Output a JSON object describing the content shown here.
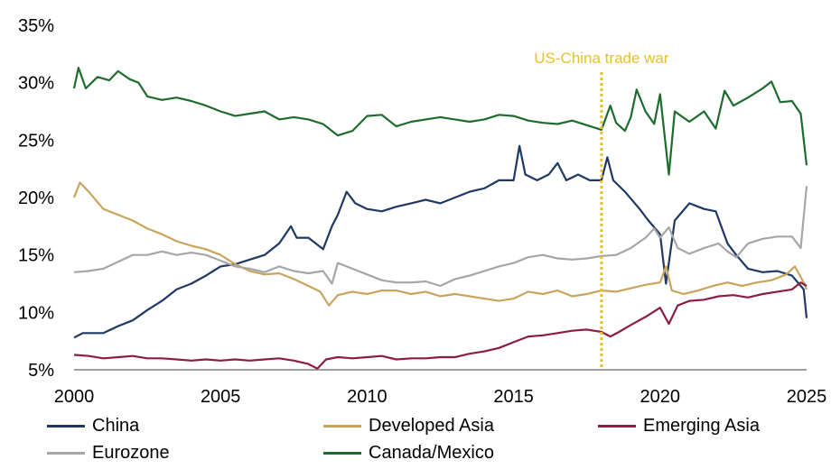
{
  "chart_data": {
    "type": "line",
    "title": "",
    "xlabel": "",
    "ylabel": "",
    "xlim": [
      2000,
      2025
    ],
    "ylim": [
      5,
      35
    ],
    "x_ticks": [
      "2000",
      "2005",
      "2010",
      "2015",
      "2020",
      "2025"
    ],
    "y_ticks": [
      "5%",
      "10%",
      "15%",
      "20%",
      "25%",
      "30%",
      "35%"
    ],
    "grid": false,
    "legend_position": "bottom",
    "annotations": [
      {
        "text": "US-China trade war",
        "x": 2018.0,
        "style": "dotted-vertical-line",
        "color": "#E6C229"
      }
    ],
    "series": [
      {
        "name": "China",
        "color": "#1F3864",
        "points": [
          [
            2000,
            7.8
          ],
          [
            2000.3,
            8.2
          ],
          [
            2001,
            8.2
          ],
          [
            2001.5,
            8.8
          ],
          [
            2002,
            9.3
          ],
          [
            2002.5,
            10.2
          ],
          [
            2003,
            11.0
          ],
          [
            2003.5,
            12.0
          ],
          [
            2004,
            12.5
          ],
          [
            2004.5,
            13.2
          ],
          [
            2005,
            14.0
          ],
          [
            2005.5,
            14.2
          ],
          [
            2006,
            14.6
          ],
          [
            2006.5,
            15.0
          ],
          [
            2007,
            16.0
          ],
          [
            2007.4,
            17.5
          ],
          [
            2007.6,
            16.5
          ],
          [
            2008,
            16.5
          ],
          [
            2008.5,
            15.5
          ],
          [
            2008.8,
            17.5
          ],
          [
            2009,
            18.5
          ],
          [
            2009.3,
            20.5
          ],
          [
            2009.6,
            19.5
          ],
          [
            2010,
            19.0
          ],
          [
            2010.5,
            18.8
          ],
          [
            2011,
            19.2
          ],
          [
            2011.5,
            19.5
          ],
          [
            2012,
            19.8
          ],
          [
            2012.5,
            19.5
          ],
          [
            2013,
            20.0
          ],
          [
            2013.5,
            20.5
          ],
          [
            2014,
            20.8
          ],
          [
            2014.5,
            21.5
          ],
          [
            2015,
            21.5
          ],
          [
            2015.2,
            24.5
          ],
          [
            2015.4,
            22.0
          ],
          [
            2015.8,
            21.5
          ],
          [
            2016.2,
            22.0
          ],
          [
            2016.5,
            23.0
          ],
          [
            2016.8,
            21.5
          ],
          [
            2017.2,
            22.0
          ],
          [
            2017.6,
            21.5
          ],
          [
            2018,
            21.5
          ],
          [
            2018.2,
            23.5
          ],
          [
            2018.4,
            21.5
          ],
          [
            2018.8,
            20.5
          ],
          [
            2019.3,
            19.0
          ],
          [
            2019.6,
            18.0
          ],
          [
            2020,
            16.8
          ],
          [
            2020.2,
            12.5
          ],
          [
            2020.5,
            18.0
          ],
          [
            2021,
            19.5
          ],
          [
            2021.5,
            19.0
          ],
          [
            2021.9,
            18.8
          ],
          [
            2022.3,
            16.0
          ],
          [
            2022.6,
            15.0
          ],
          [
            2023,
            13.8
          ],
          [
            2023.5,
            13.5
          ],
          [
            2024,
            13.6
          ],
          [
            2024.5,
            13.2
          ],
          [
            2024.9,
            12.0
          ],
          [
            2025,
            9.5
          ]
        ]
      },
      {
        "name": "Developed Asia",
        "color": "#C9A45C",
        "points": [
          [
            2000,
            20.0
          ],
          [
            2000.2,
            21.3
          ],
          [
            2000.5,
            20.5
          ],
          [
            2001,
            19.0
          ],
          [
            2001.5,
            18.5
          ],
          [
            2002,
            18.0
          ],
          [
            2002.5,
            17.3
          ],
          [
            2003,
            16.8
          ],
          [
            2003.5,
            16.2
          ],
          [
            2004,
            15.8
          ],
          [
            2004.5,
            15.5
          ],
          [
            2005,
            15.0
          ],
          [
            2005.5,
            14.2
          ],
          [
            2006,
            13.6
          ],
          [
            2006.5,
            13.3
          ],
          [
            2007,
            13.4
          ],
          [
            2007.5,
            12.9
          ],
          [
            2008,
            12.3
          ],
          [
            2008.4,
            11.8
          ],
          [
            2008.7,
            10.6
          ],
          [
            2009,
            11.5
          ],
          [
            2009.5,
            11.8
          ],
          [
            2010,
            11.6
          ],
          [
            2010.5,
            11.9
          ],
          [
            2011,
            11.9
          ],
          [
            2011.5,
            11.6
          ],
          [
            2012,
            11.8
          ],
          [
            2012.5,
            11.4
          ],
          [
            2013,
            11.6
          ],
          [
            2013.5,
            11.4
          ],
          [
            2014,
            11.2
          ],
          [
            2014.5,
            11.0
          ],
          [
            2015,
            11.2
          ],
          [
            2015.5,
            11.8
          ],
          [
            2016,
            11.6
          ],
          [
            2016.5,
            11.9
          ],
          [
            2017,
            11.4
          ],
          [
            2017.5,
            11.6
          ],
          [
            2018,
            11.9
          ],
          [
            2018.5,
            11.8
          ],
          [
            2019,
            12.1
          ],
          [
            2019.5,
            12.4
          ],
          [
            2020,
            12.6
          ],
          [
            2020.2,
            14.0
          ],
          [
            2020.4,
            11.9
          ],
          [
            2020.8,
            11.6
          ],
          [
            2021.3,
            11.9
          ],
          [
            2021.8,
            12.3
          ],
          [
            2022.3,
            12.6
          ],
          [
            2022.8,
            12.3
          ],
          [
            2023.3,
            12.6
          ],
          [
            2023.8,
            12.8
          ],
          [
            2024.3,
            13.3
          ],
          [
            2024.6,
            14.0
          ],
          [
            2024.9,
            12.6
          ],
          [
            2025,
            12.0
          ]
        ]
      },
      {
        "name": "Emerging Asia",
        "color": "#8B1E3F",
        "points": [
          [
            2000,
            6.3
          ],
          [
            2000.5,
            6.2
          ],
          [
            2001,
            6.0
          ],
          [
            2001.5,
            6.1
          ],
          [
            2002,
            6.2
          ],
          [
            2002.5,
            6.0
          ],
          [
            2003,
            6.0
          ],
          [
            2003.5,
            5.9
          ],
          [
            2004,
            5.8
          ],
          [
            2004.5,
            5.9
          ],
          [
            2005,
            5.8
          ],
          [
            2005.5,
            5.9
          ],
          [
            2006,
            5.8
          ],
          [
            2006.5,
            5.9
          ],
          [
            2007,
            6.0
          ],
          [
            2007.5,
            5.8
          ],
          [
            2008,
            5.5
          ],
          [
            2008.3,
            5.1
          ],
          [
            2008.6,
            5.9
          ],
          [
            2009,
            6.1
          ],
          [
            2009.5,
            6.0
          ],
          [
            2010,
            6.1
          ],
          [
            2010.5,
            6.2
          ],
          [
            2011,
            5.9
          ],
          [
            2011.5,
            6.0
          ],
          [
            2012,
            6.0
          ],
          [
            2012.5,
            6.1
          ],
          [
            2013,
            6.1
          ],
          [
            2013.5,
            6.4
          ],
          [
            2014,
            6.6
          ],
          [
            2014.5,
            6.9
          ],
          [
            2015,
            7.4
          ],
          [
            2015.5,
            7.9
          ],
          [
            2016,
            8.0
          ],
          [
            2016.5,
            8.2
          ],
          [
            2017,
            8.4
          ],
          [
            2017.5,
            8.5
          ],
          [
            2018,
            8.3
          ],
          [
            2018.3,
            7.9
          ],
          [
            2018.6,
            8.3
          ],
          [
            2019,
            8.9
          ],
          [
            2019.5,
            9.6
          ],
          [
            2020,
            10.4
          ],
          [
            2020.3,
            9.0
          ],
          [
            2020.6,
            10.6
          ],
          [
            2021,
            11.0
          ],
          [
            2021.5,
            11.1
          ],
          [
            2022,
            11.4
          ],
          [
            2022.5,
            11.5
          ],
          [
            2023,
            11.3
          ],
          [
            2023.5,
            11.6
          ],
          [
            2024,
            11.8
          ],
          [
            2024.5,
            12.0
          ],
          [
            2024.8,
            12.6
          ],
          [
            2025,
            12.3
          ]
        ]
      },
      {
        "name": "Eurozone",
        "color": "#A6A6A6",
        "points": [
          [
            2000,
            13.5
          ],
          [
            2000.5,
            13.6
          ],
          [
            2001,
            13.8
          ],
          [
            2001.5,
            14.4
          ],
          [
            2002,
            15.0
          ],
          [
            2002.5,
            15.0
          ],
          [
            2003,
            15.3
          ],
          [
            2003.5,
            15.0
          ],
          [
            2004,
            15.2
          ],
          [
            2004.5,
            15.0
          ],
          [
            2005,
            14.5
          ],
          [
            2005.5,
            14.0
          ],
          [
            2006,
            13.8
          ],
          [
            2006.5,
            13.5
          ],
          [
            2007,
            14.0
          ],
          [
            2007.5,
            13.6
          ],
          [
            2008,
            13.4
          ],
          [
            2008.5,
            13.6
          ],
          [
            2008.8,
            12.5
          ],
          [
            2009,
            14.3
          ],
          [
            2009.3,
            14.0
          ],
          [
            2009.7,
            13.6
          ],
          [
            2010,
            13.3
          ],
          [
            2010.5,
            12.8
          ],
          [
            2011,
            12.6
          ],
          [
            2011.5,
            12.6
          ],
          [
            2012,
            12.7
          ],
          [
            2012.5,
            12.3
          ],
          [
            2013,
            12.9
          ],
          [
            2013.5,
            13.2
          ],
          [
            2014,
            13.6
          ],
          [
            2014.5,
            14.0
          ],
          [
            2015,
            14.3
          ],
          [
            2015.5,
            14.8
          ],
          [
            2016,
            15.0
          ],
          [
            2016.5,
            14.7
          ],
          [
            2017,
            14.6
          ],
          [
            2017.5,
            14.7
          ],
          [
            2018,
            14.9
          ],
          [
            2018.5,
            15.0
          ],
          [
            2019,
            15.6
          ],
          [
            2019.5,
            16.5
          ],
          [
            2019.8,
            17.3
          ],
          [
            2020,
            16.5
          ],
          [
            2020.3,
            17.4
          ],
          [
            2020.6,
            15.6
          ],
          [
            2021,
            15.1
          ],
          [
            2021.5,
            15.6
          ],
          [
            2022,
            16.0
          ],
          [
            2022.3,
            15.3
          ],
          [
            2022.6,
            14.8
          ],
          [
            2023,
            16.0
          ],
          [
            2023.5,
            16.4
          ],
          [
            2024,
            16.6
          ],
          [
            2024.5,
            16.6
          ],
          [
            2024.8,
            15.6
          ],
          [
            2025,
            21.0
          ]
        ]
      },
      {
        "name": "Canada/Mexico",
        "color": "#1E6B2E",
        "points": [
          [
            2000,
            29.5
          ],
          [
            2000.15,
            31.3
          ],
          [
            2000.4,
            29.5
          ],
          [
            2000.8,
            30.5
          ],
          [
            2001.2,
            30.2
          ],
          [
            2001.5,
            31.0
          ],
          [
            2001.9,
            30.3
          ],
          [
            2002.2,
            30.0
          ],
          [
            2002.5,
            28.8
          ],
          [
            2003,
            28.5
          ],
          [
            2003.5,
            28.7
          ],
          [
            2004,
            28.4
          ],
          [
            2004.5,
            28.0
          ],
          [
            2005,
            27.5
          ],
          [
            2005.5,
            27.1
          ],
          [
            2006,
            27.3
          ],
          [
            2006.5,
            27.5
          ],
          [
            2007,
            26.8
          ],
          [
            2007.5,
            27.0
          ],
          [
            2008,
            26.8
          ],
          [
            2008.5,
            26.4
          ],
          [
            2009,
            25.4
          ],
          [
            2009.5,
            25.8
          ],
          [
            2010,
            27.1
          ],
          [
            2010.5,
            27.2
          ],
          [
            2011,
            26.2
          ],
          [
            2011.5,
            26.6
          ],
          [
            2012,
            26.8
          ],
          [
            2012.5,
            27.0
          ],
          [
            2013,
            26.8
          ],
          [
            2013.5,
            26.6
          ],
          [
            2014,
            26.8
          ],
          [
            2014.5,
            27.2
          ],
          [
            2015,
            27.1
          ],
          [
            2015.5,
            26.7
          ],
          [
            2016,
            26.5
          ],
          [
            2016.5,
            26.4
          ],
          [
            2017,
            26.7
          ],
          [
            2017.5,
            26.3
          ],
          [
            2018,
            25.9
          ],
          [
            2018.3,
            28.0
          ],
          [
            2018.5,
            26.5
          ],
          [
            2018.8,
            25.8
          ],
          [
            2019,
            27.0
          ],
          [
            2019.2,
            29.4
          ],
          [
            2019.5,
            27.5
          ],
          [
            2019.8,
            26.4
          ],
          [
            2020,
            29.0
          ],
          [
            2020.3,
            22.0
          ],
          [
            2020.5,
            27.5
          ],
          [
            2021,
            26.6
          ],
          [
            2021.5,
            27.5
          ],
          [
            2021.9,
            26.0
          ],
          [
            2022.2,
            29.3
          ],
          [
            2022.5,
            28.0
          ],
          [
            2023,
            28.7
          ],
          [
            2023.5,
            29.5
          ],
          [
            2023.8,
            30.1
          ],
          [
            2024.1,
            28.3
          ],
          [
            2024.5,
            28.4
          ],
          [
            2024.8,
            27.3
          ],
          [
            2025,
            22.8
          ]
        ]
      }
    ]
  }
}
